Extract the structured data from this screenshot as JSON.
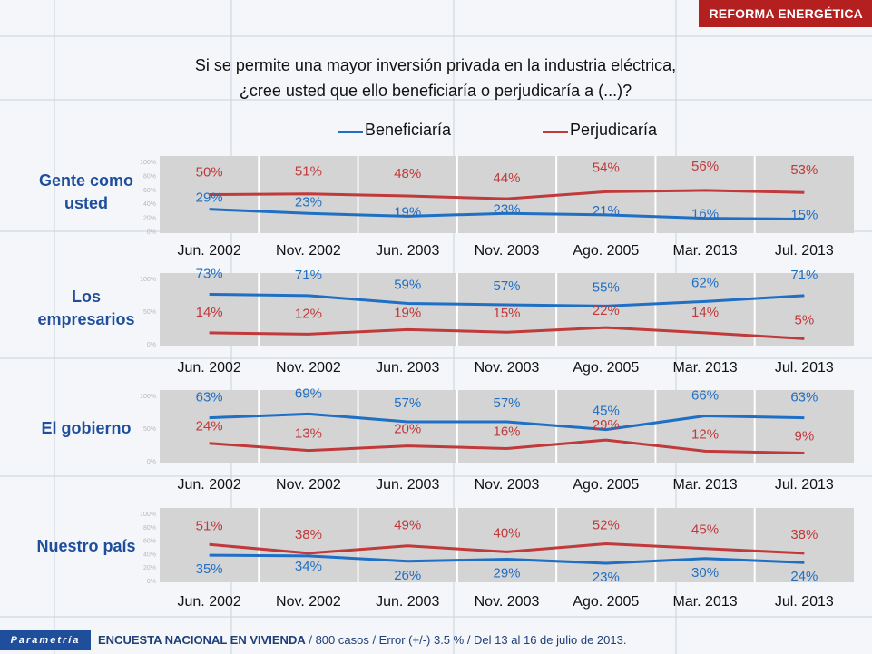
{
  "header": {
    "section_title": "REFORMA ENERGÉTICA"
  },
  "question": {
    "line1": "Si se permite una mayor inversión privada en la industria eléctrica,",
    "line2": "¿cree usted que ello beneficiaría o perjudicaría a (...)?"
  },
  "legend": [
    {
      "name": "Beneficiaría",
      "color": "#1f6fc4"
    },
    {
      "name": "Perjudicaría",
      "color": "#c0393b"
    }
  ],
  "colors": {
    "benefit": "#1f6fc4",
    "harm": "#c0393b",
    "label_blue": "#1f4e9d",
    "header": "#b41f1f"
  },
  "chart_data": [
    {
      "type": "line",
      "title": "Gente como usted",
      "categories": [
        "Jun. 2002",
        "Nov. 2002",
        "Jun. 2003",
        "Nov. 2003",
        "Ago. 2005",
        "Mar. 2013",
        "Jul. 2013"
      ],
      "ylim": [
        0,
        100
      ],
      "yticks": [
        "0%",
        "20%",
        "40%",
        "60%",
        "80%",
        "100%"
      ],
      "series": [
        {
          "name": "Beneficiaría",
          "values": [
            29,
            23,
            19,
            23,
            21,
            16,
            15
          ]
        },
        {
          "name": "Perjudicaría",
          "values": [
            50,
            51,
            48,
            44,
            54,
            56,
            53
          ]
        }
      ]
    },
    {
      "type": "line",
      "title": "Los empresarios",
      "categories": [
        "Jun. 2002",
        "Nov. 2002",
        "Jun. 2003",
        "Nov. 2003",
        "Ago. 2005",
        "Mar. 2013",
        "Jul. 2013"
      ],
      "ylim": [
        0,
        100
      ],
      "yticks": [
        "0%",
        "50%",
        "100%"
      ],
      "series": [
        {
          "name": "Beneficiaría",
          "values": [
            73,
            71,
            59,
            57,
            55,
            62,
            71
          ]
        },
        {
          "name": "Perjudicaría",
          "values": [
            14,
            12,
            19,
            15,
            22,
            14,
            5
          ]
        }
      ]
    },
    {
      "type": "line",
      "title": "El gobierno",
      "categories": [
        "Jun. 2002",
        "Nov. 2002",
        "Jun. 2003",
        "Nov. 2003",
        "Ago. 2005",
        "Mar. 2013",
        "Jul. 2013"
      ],
      "ylim": [
        0,
        100
      ],
      "yticks": [
        "0%",
        "50%",
        "100%"
      ],
      "series": [
        {
          "name": "Beneficiaría",
          "values": [
            63,
            69,
            57,
            57,
            45,
            66,
            63
          ]
        },
        {
          "name": "Perjudicaría",
          "values": [
            24,
            13,
            20,
            16,
            29,
            12,
            9
          ]
        }
      ]
    },
    {
      "type": "line",
      "title": "Nuestro país",
      "categories": [
        "Jun. 2002",
        "Nov. 2002",
        "Jun. 2003",
        "Nov. 2003",
        "Ago. 2005",
        "Mar. 2013",
        "Jul. 2013"
      ],
      "ylim": [
        0,
        100
      ],
      "yticks": [
        "0%",
        "20%",
        "40%",
        "60%",
        "80%",
        "100%"
      ],
      "series": [
        {
          "name": "Beneficiaría",
          "values": [
            35,
            34,
            26,
            29,
            23,
            30,
            24
          ]
        },
        {
          "name": "Perjudicaría",
          "values": [
            51,
            38,
            49,
            40,
            52,
            45,
            38
          ]
        }
      ]
    }
  ],
  "row_labels": [
    {
      "line1": "Gente como",
      "line2": "usted"
    },
    {
      "line1": "Los",
      "line2": "empresarios"
    },
    {
      "line1": "El gobierno",
      "line2": ""
    },
    {
      "line1": "Nuestro país",
      "line2": ""
    }
  ],
  "footer": {
    "logo": "Parametría",
    "survey_bold": "ENCUESTA NACIONAL EN VIVIENDA",
    "survey_rest": " / 800 casos / Error (+/-) 3.5 % / Del 13 al 16 de julio de 2013."
  }
}
